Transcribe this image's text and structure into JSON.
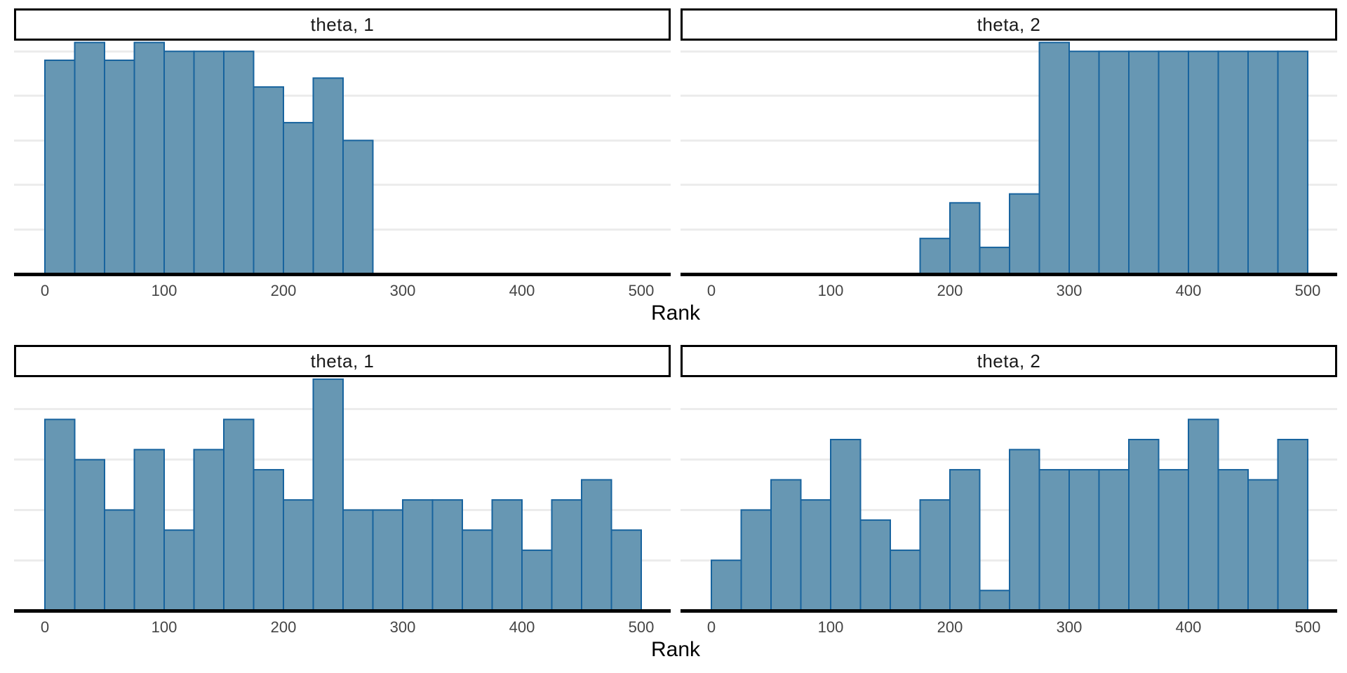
{
  "figure": {
    "colors": {
      "background": "#ffffff",
      "bar_fill": "#6797b3",
      "bar_stroke": "#17639e",
      "gridline": "#ececec",
      "axis_line": "#000000",
      "tick_label": "#454545",
      "strip_text": "#1a1a1a",
      "axis_title": "#000000",
      "strip_border": "#000000"
    }
  },
  "chart_data": [
    {
      "type": "bar",
      "subtype": "rank-histogram",
      "facet_label": "theta, 1",
      "row": 1,
      "xlabel": "Rank",
      "x_ticks": [
        0,
        100,
        200,
        300,
        400,
        500
      ],
      "xlim": [
        0,
        500
      ],
      "bin_width": 25,
      "x_start": 0,
      "counts": [
        24,
        26,
        24,
        26,
        25,
        25,
        25,
        21,
        17,
        22,
        15,
        0,
        0,
        0,
        0,
        0,
        0,
        0,
        0,
        0
      ],
      "total_count": 250,
      "ylim": [
        0,
        26.2
      ],
      "y_gridlines": [
        5,
        10,
        15,
        20,
        25
      ],
      "y_axis_labels": "none",
      "grid": "horizontal-only",
      "legend": "none"
    },
    {
      "type": "bar",
      "subtype": "rank-histogram",
      "facet_label": "theta, 2",
      "row": 1,
      "xlabel": "Rank",
      "x_ticks": [
        0,
        100,
        200,
        300,
        400,
        500
      ],
      "xlim": [
        0,
        500
      ],
      "bin_width": 25,
      "x_start": 0,
      "counts": [
        0,
        0,
        0,
        0,
        0,
        0,
        0,
        4,
        8,
        3,
        9,
        26,
        25,
        25,
        25,
        25,
        25,
        25,
        25,
        25
      ],
      "total_count": 250,
      "ylim": [
        0,
        26.2
      ],
      "y_gridlines": [
        5,
        10,
        15,
        20,
        25
      ],
      "y_axis_labels": "none",
      "grid": "horizontal-only",
      "legend": "none"
    },
    {
      "type": "bar",
      "subtype": "rank-histogram",
      "facet_label": "theta, 1",
      "row": 2,
      "xlabel": "Rank",
      "x_ticks": [
        0,
        100,
        200,
        300,
        400,
        500
      ],
      "xlim": [
        0,
        500
      ],
      "bin_width": 25,
      "x_start": 0,
      "counts": [
        19,
        15,
        10,
        16,
        8,
        16,
        19,
        14,
        11,
        23,
        10,
        10,
        11,
        11,
        8,
        11,
        6,
        11,
        13,
        8
      ],
      "total_count": 250,
      "ylim": [
        0,
        23.2
      ],
      "y_gridlines": [
        5,
        10,
        15,
        20
      ],
      "y_axis_labels": "none",
      "grid": "horizontal-only",
      "legend": "none"
    },
    {
      "type": "bar",
      "subtype": "rank-histogram",
      "facet_label": "theta, 2",
      "row": 2,
      "xlabel": "Rank",
      "x_ticks": [
        0,
        100,
        200,
        300,
        400,
        500
      ],
      "xlim": [
        0,
        500
      ],
      "bin_width": 25,
      "x_start": 0,
      "counts": [
        5,
        10,
        13,
        11,
        17,
        9,
        6,
        11,
        14,
        2,
        16,
        14,
        14,
        14,
        17,
        14,
        19,
        14,
        13,
        17
      ],
      "total_count": 250,
      "ylim": [
        0,
        23.2
      ],
      "y_gridlines": [
        5,
        10,
        15,
        20
      ],
      "y_axis_labels": "none",
      "grid": "horizontal-only",
      "legend": "none"
    }
  ]
}
